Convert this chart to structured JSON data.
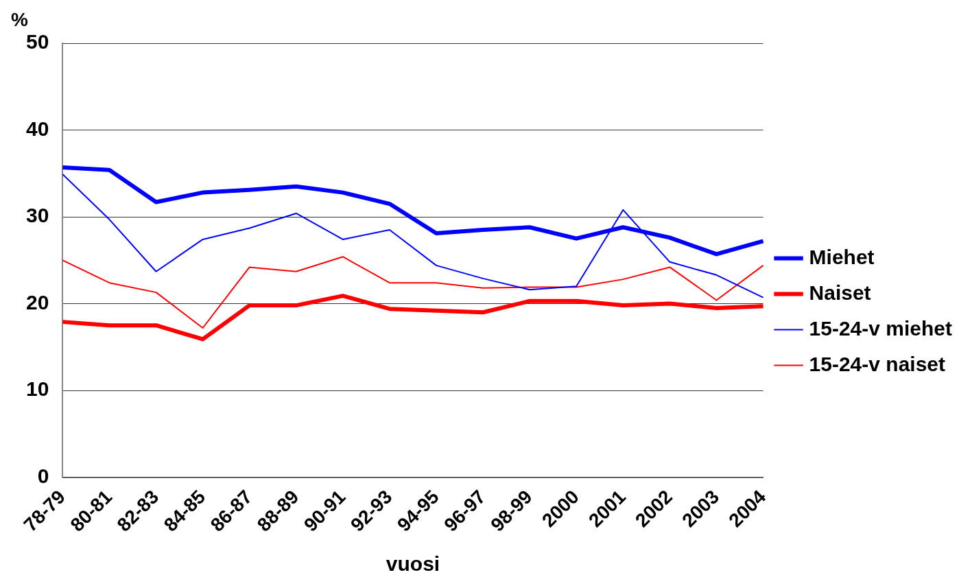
{
  "chart_data": {
    "type": "line",
    "ylabel": "%",
    "xlabel": "vuosi",
    "categories": [
      "78-79",
      "80-81",
      "82-83",
      "84-85",
      "86-87",
      "88-89",
      "90-91",
      "92-93",
      "94-95",
      "96-97",
      "98-99",
      "2000",
      "2001",
      "2002",
      "2003",
      "2004"
    ],
    "series": [
      {
        "name": "Miehet",
        "color": "#0000ff",
        "values": [
          35.7,
          35.4,
          31.7,
          32.8,
          33.1,
          33.5,
          32.8,
          31.5,
          28.1,
          28.5,
          28.8,
          27.5,
          28.8,
          27.6,
          25.7,
          27.2
        ]
      },
      {
        "name": "Naiset",
        "color": "#ff0000",
        "values": [
          17.9,
          17.5,
          17.5,
          15.9,
          19.8,
          19.8,
          20.9,
          19.4,
          19.2,
          19.0,
          20.3,
          20.3,
          19.8,
          20.0,
          19.5,
          19.7
        ]
      },
      {
        "name": "15-24-v miehet",
        "color": "#0000ff",
        "values": [
          34.9,
          29.7,
          23.7,
          27.4,
          28.7,
          30.4,
          27.4,
          28.5,
          24.4,
          22.9,
          21.6,
          22.0,
          30.8,
          24.8,
          23.3,
          20.7
        ]
      },
      {
        "name": "15-24-v naiset",
        "color": "#ff0000",
        "values": [
          25.0,
          22.4,
          21.3,
          17.2,
          24.2,
          23.7,
          25.4,
          22.4,
          22.4,
          21.8,
          21.9,
          21.9,
          22.8,
          24.2,
          20.4,
          24.4
        ]
      }
    ],
    "ylim": [
      0,
      50
    ],
    "yticks": [
      0,
      10,
      20,
      30,
      40,
      50
    ],
    "grid": "y",
    "legend": "right",
    "marker": "none",
    "line_style": "solid"
  }
}
